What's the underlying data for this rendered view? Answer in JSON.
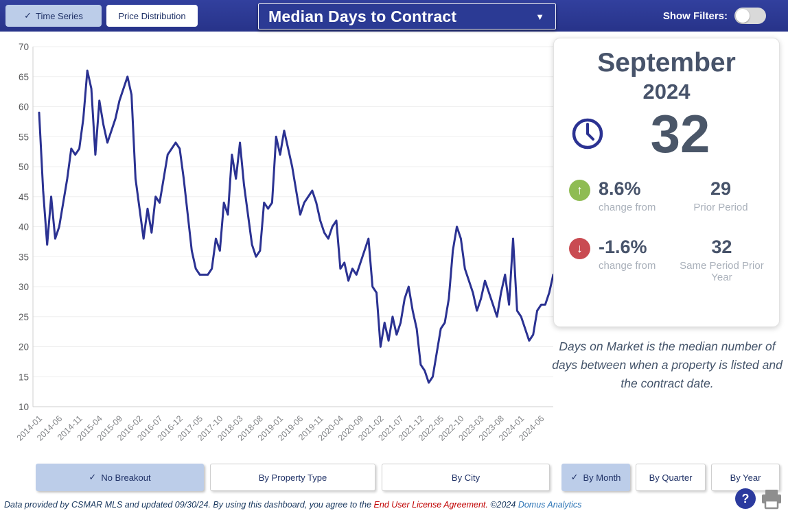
{
  "topbar": {
    "tabs": [
      {
        "label": "Time Series",
        "check": "✓",
        "selected": true
      },
      {
        "label": "Price Distribution",
        "selected": false
      }
    ],
    "title": "Median Days to Contract",
    "caret": "▼",
    "show_filters_label": "Show Filters:",
    "filters_toggle_on": false
  },
  "chart_data": {
    "type": "line",
    "title": "Median Days to Contract time series",
    "x_start": "2014-01",
    "x_end": "2024-09",
    "x_interval": "month",
    "values": [
      59,
      46,
      37,
      45,
      38,
      40,
      44,
      48,
      53,
      52,
      53,
      58,
      66,
      63,
      52,
      61,
      57,
      54,
      56,
      58,
      61,
      63,
      65,
      62,
      48,
      43,
      38,
      43,
      39,
      45,
      44,
      48,
      52,
      53,
      54,
      53,
      48,
      42,
      36,
      33,
      32,
      32,
      32,
      33,
      38,
      36,
      44,
      42,
      52,
      48,
      54,
      47,
      42,
      37,
      35,
      36,
      44,
      43,
      44,
      55,
      52,
      56,
      53,
      50,
      46,
      42,
      44,
      45,
      46,
      44,
      41,
      39,
      38,
      40,
      41,
      33,
      34,
      31,
      33,
      32,
      34,
      36,
      38,
      30,
      29,
      20,
      24,
      21,
      25,
      22,
      24,
      28,
      30,
      26,
      23,
      17,
      16,
      14,
      15,
      19,
      23,
      24,
      28,
      36,
      40,
      38,
      33,
      31,
      29,
      26,
      28,
      31,
      29,
      27,
      25,
      29,
      32,
      27,
      38,
      26,
      25,
      23,
      21,
      22,
      26,
      27,
      27,
      29,
      32
    ],
    "tick_labels": [
      "2014-01",
      "2014-06",
      "2014-11",
      "2015-04",
      "2015-09",
      "2016-02",
      "2016-07",
      "2016-12",
      "2017-05",
      "2017-10",
      "2018-03",
      "2018-08",
      "2019-01",
      "2019-06",
      "2019-11",
      "2020-04",
      "2020-09",
      "2021-02",
      "2021-07",
      "2021-12",
      "2022-05",
      "2022-10",
      "2023-03",
      "2023-08",
      "2024-01",
      "2024-06"
    ],
    "tick_every": 5,
    "ylim": [
      10,
      70
    ],
    "ytick_step": 5,
    "line_color": "#2b3292",
    "grid": true,
    "legend": "none"
  },
  "panel": {
    "month": "September",
    "year": "2024",
    "value": "32",
    "stats": [
      {
        "direction": "up",
        "arrow": "↑",
        "pct": "8.6%",
        "caption": "change from",
        "ref_value": "29",
        "ref_label": "Prior Period",
        "color": "#8fbc53"
      },
      {
        "direction": "down",
        "arrow": "↓",
        "pct": "-1.6%",
        "caption": "change from",
        "ref_value": "32",
        "ref_label": "Same Period Prior Year",
        "color": "#c94b52"
      }
    ],
    "description": "Days on Market is the median number of days between when a property is listed and the contract date."
  },
  "breakout_buttons": [
    {
      "label": "No Breakout",
      "check": "✓",
      "selected": true
    },
    {
      "label": "By Property Type",
      "selected": false
    },
    {
      "label": "By City",
      "selected": false
    }
  ],
  "period_buttons": [
    {
      "label": "By Month",
      "check": "✓",
      "selected": true
    },
    {
      "label": "By Quarter",
      "selected": false
    },
    {
      "label": "By Year",
      "selected": false
    }
  ],
  "footer": {
    "text_before_link": "Data provided by CSMAR MLS and updated 09/30/24.  By using this dashboard, you agree to the ",
    "license_link": "End User License Agreement.",
    "copyright": "  ©2024 ",
    "brand_link": "Domus Analytics",
    "help_glyph": "?"
  }
}
